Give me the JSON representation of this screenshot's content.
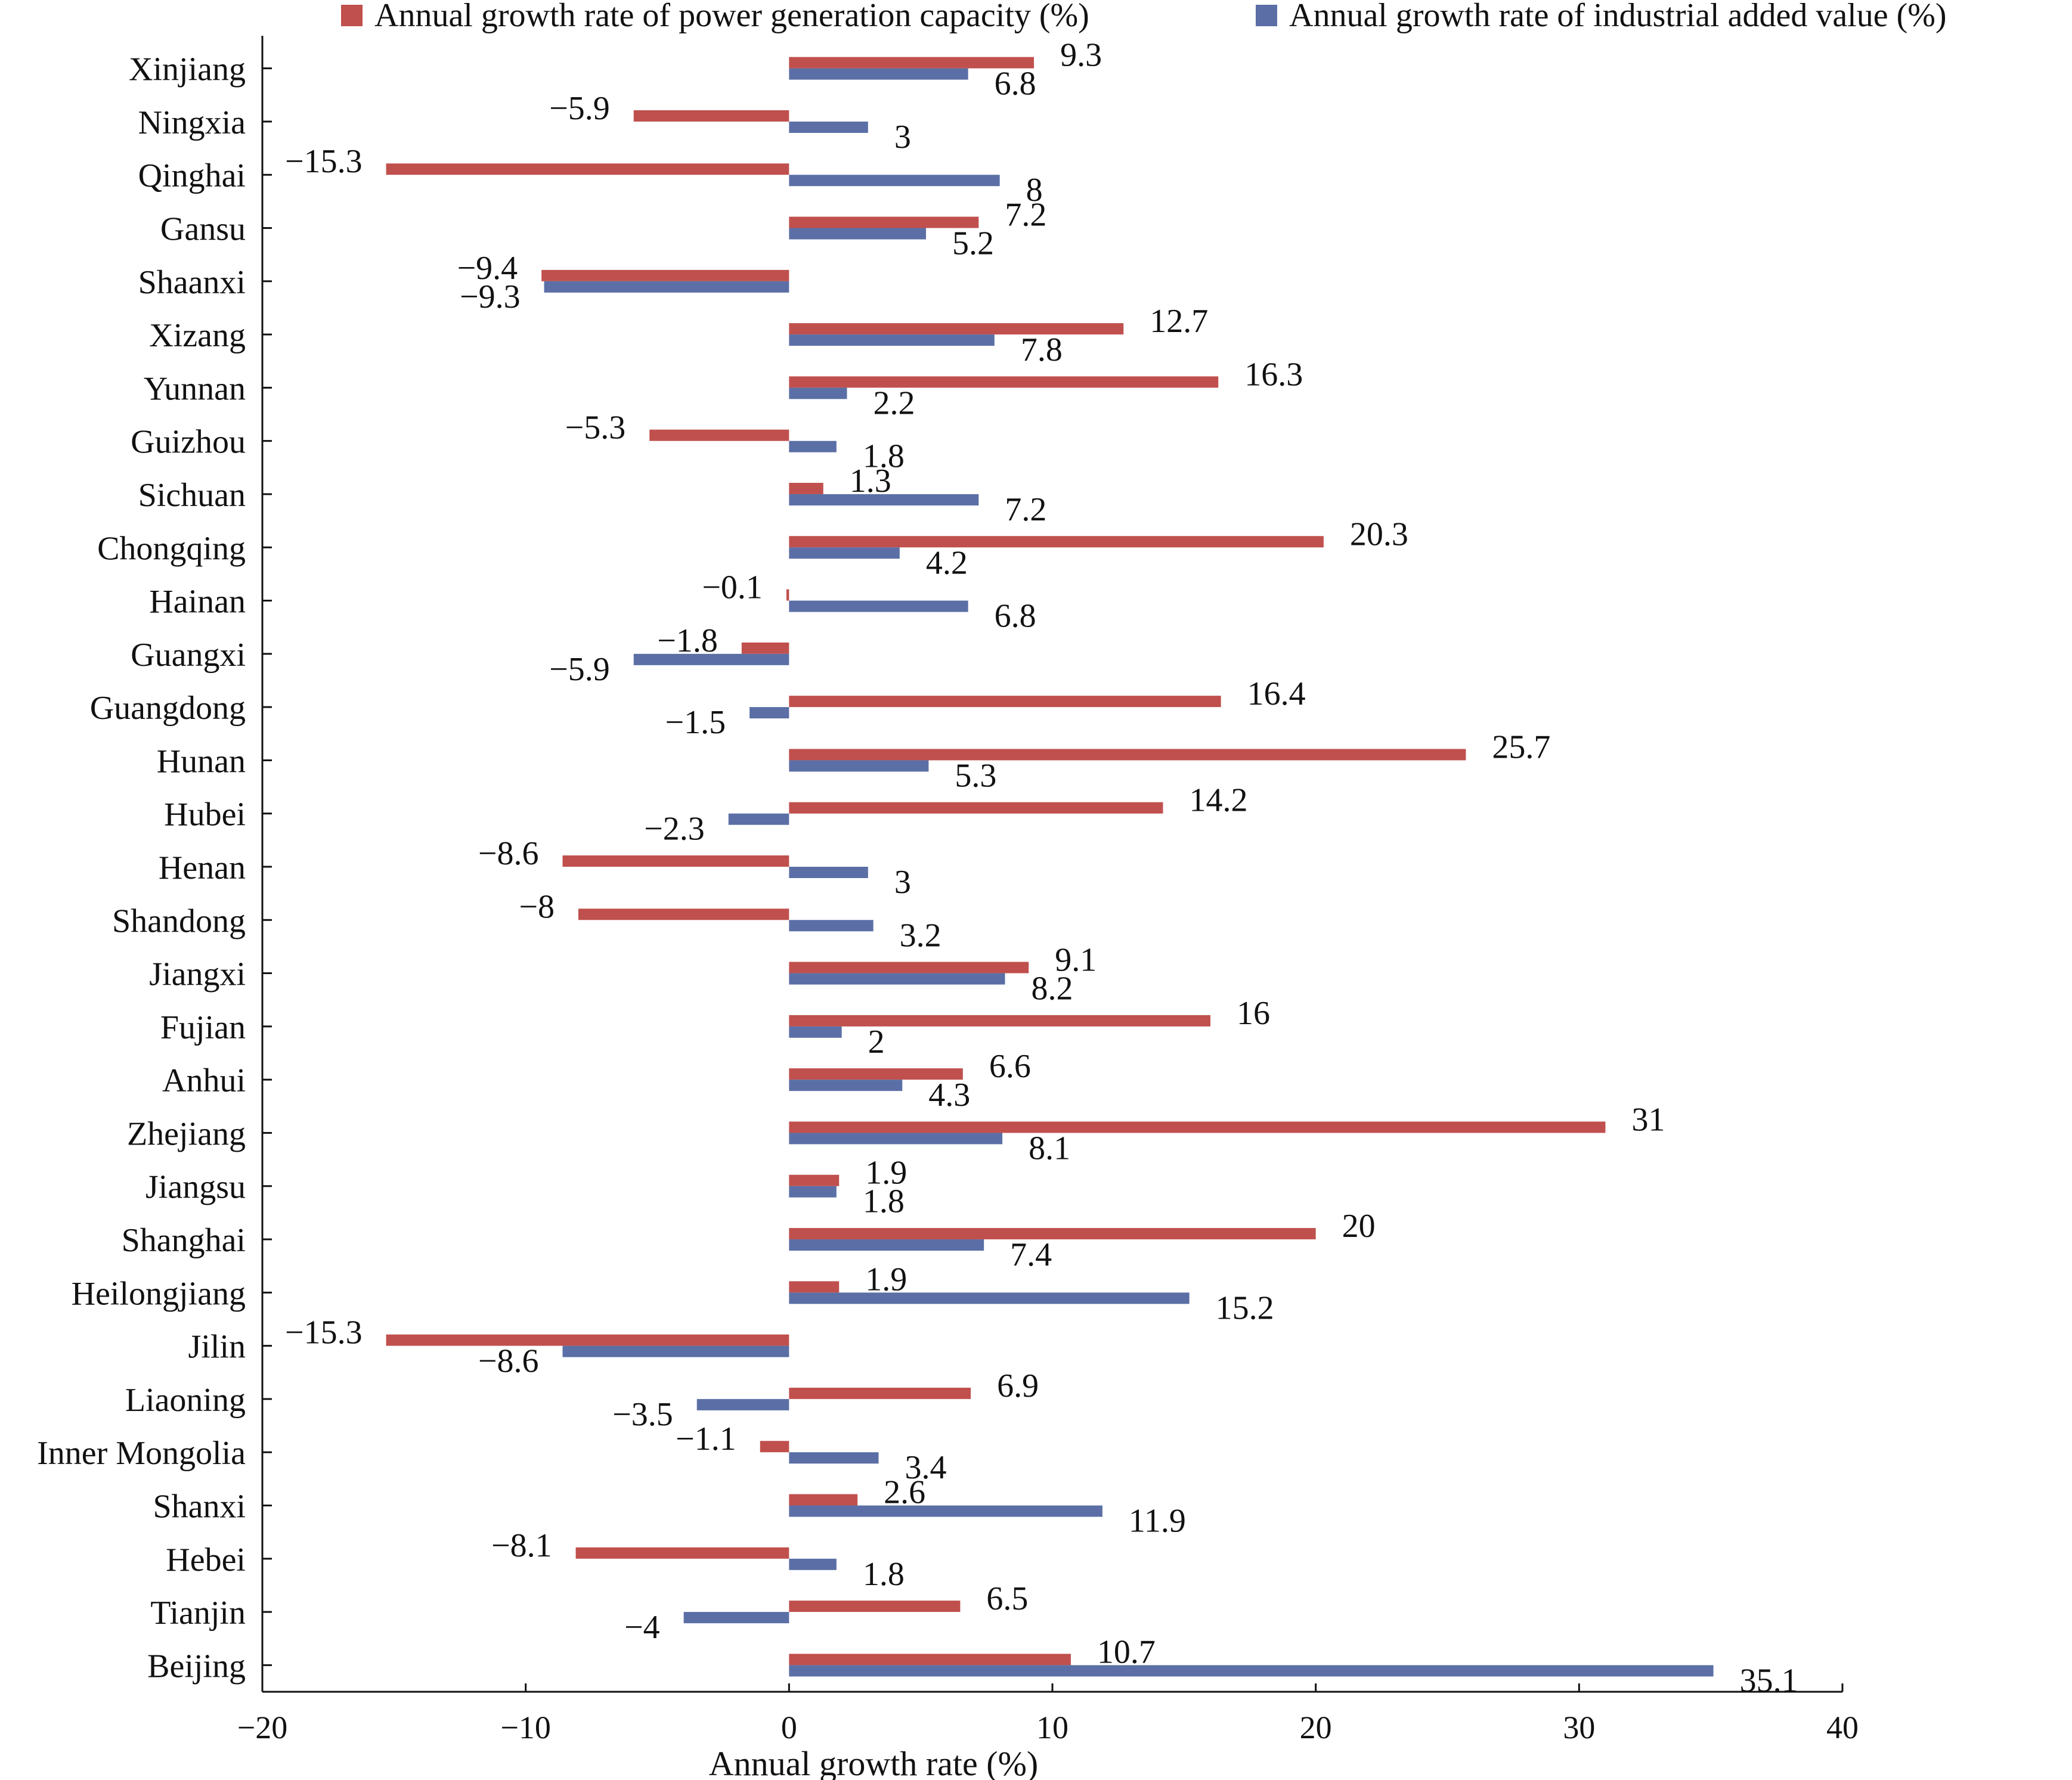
{
  "chart_data": {
    "type": "bar",
    "orientation": "horizontal",
    "xlabel": "Annual growth rate (%)",
    "xlim": [
      -20,
      40
    ],
    "xticks": [
      -20,
      -10,
      0,
      10,
      20,
      30,
      40
    ],
    "tick_labels": [
      "−20",
      "−10",
      "0",
      "10",
      "20",
      "30",
      "40"
    ],
    "legend_placement": "top",
    "categories": [
      "Xinjiang",
      "Ningxia",
      "Qinghai",
      "Gansu",
      "Shaanxi",
      "Xizang",
      "Yunnan",
      "Guizhou",
      "Sichuan",
      "Chongqing",
      "Hainan",
      "Guangxi",
      "Guangdong",
      "Hunan",
      "Hubei",
      "Henan",
      "Shandong",
      "Jiangxi",
      "Fujian",
      "Anhui",
      "Zhejiang",
      "Jiangsu",
      "Shanghai",
      "Heilongjiang",
      "Jilin",
      "Liaoning",
      "Inner Mongolia",
      "Shanxi",
      "Hebei",
      "Tianjin",
      "Beijing"
    ],
    "series": [
      {
        "name": "Annual growth rate of power generation capacity (%)",
        "color": "#c0504d",
        "values": [
          9.3,
          -5.9,
          -15.3,
          7.2,
          -9.4,
          12.7,
          16.3,
          -5.3,
          1.3,
          20.3,
          -0.1,
          -1.8,
          16.4,
          25.7,
          14.2,
          -8.6,
          -8,
          9.1,
          16,
          6.6,
          31,
          1.9,
          20,
          1.9,
          -15.3,
          6.9,
          -1.1,
          2.6,
          -8.1,
          6.5,
          10.7
        ],
        "labels": [
          "9.3",
          "−5.9",
          "−15.3",
          "7.2",
          "−9.4",
          "12.7",
          "16.3",
          "−5.3",
          "1.3",
          "20.3",
          "−0.1",
          "−1.8",
          "16.4",
          "25.7",
          "14.2",
          "−8.6",
          "−8",
          "9.1",
          "16",
          "6.6",
          "31",
          "1.9",
          "20",
          "1.9",
          "−15.3",
          "6.9",
          "−1.1",
          "2.6",
          "−8.1",
          "6.5",
          "10.7"
        ]
      },
      {
        "name": "Annual growth rate of industrial added value (%)",
        "color": "#5b6fa6",
        "values": [
          6.8,
          3,
          8,
          5.2,
          -9.3,
          7.8,
          2.2,
          1.8,
          7.2,
          4.2,
          6.8,
          -5.9,
          -1.5,
          5.3,
          -2.3,
          3,
          3.2,
          8.2,
          2,
          4.3,
          8.1,
          1.8,
          7.4,
          15.2,
          -8.6,
          -3.5,
          3.4,
          11.9,
          1.8,
          -4,
          35.1
        ],
        "labels": [
          "6.8",
          "3",
          "8",
          "5.2",
          "−9.3",
          "7.8",
          "2.2",
          "1.8",
          "7.2",
          "4.2",
          "6.8",
          "−5.9",
          "−1.5",
          "5.3",
          "−2.3",
          "3",
          "3.2",
          "8.2",
          "2",
          "4.3",
          "8.1",
          "1.8",
          "7.4",
          "15.2",
          "−8.6",
          "−3.5",
          "3.4",
          "11.9",
          "1.8",
          "−4",
          "35.1"
        ]
      }
    ]
  }
}
